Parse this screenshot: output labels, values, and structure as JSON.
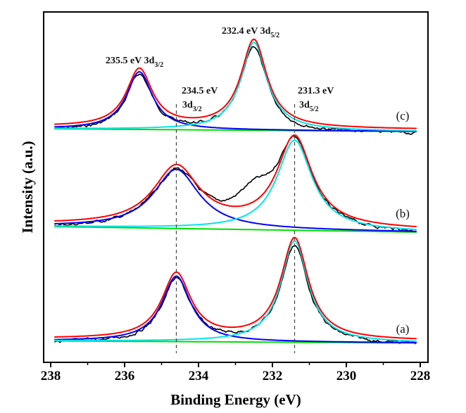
{
  "chart_data": {
    "type": "line",
    "title": "",
    "xlabel": "Binding Energy (eV)",
    "ylabel": "Intensity (a.u.)",
    "xlim": [
      238,
      228
    ],
    "x_reversed": true,
    "xticks": [
      238,
      236,
      234,
      232,
      230,
      228
    ],
    "xtick_labels": [
      "238",
      "236",
      "234",
      "232",
      "230",
      "228"
    ],
    "minor_xticks": [
      237,
      235,
      233,
      231,
      229
    ],
    "yticks_shown": false,
    "grid": false,
    "legend": "none",
    "series_colors": {
      "raw_data": "#000000",
      "envelope_fit": "#ff0000",
      "peak_3d3_2": "#0000ff",
      "peak_3d5_2": "#00e5ee",
      "background": "#00dd00"
    },
    "reference_lines": [
      {
        "x": 234.6,
        "style": "dashed",
        "color": "#444444"
      },
      {
        "x": 231.4,
        "style": "dashed",
        "color": "#444444"
      }
    ],
    "panels": [
      {
        "label": "(c)",
        "offset_order": 3,
        "peaks": [
          {
            "name": "3d3/2",
            "center": 235.6,
            "height": 82,
            "fwhm": 0.85,
            "color": "#0000ff"
          },
          {
            "name": "3d5/2",
            "center": 232.5,
            "height": 125,
            "fwhm": 0.85,
            "color": "#00e5ee"
          }
        ],
        "annotations": [
          {
            "text": "235.5 eV 3d",
            "sub": "3/2",
            "x": 235.5
          },
          {
            "text": "232.4 eV 3d",
            "sub": "5/2",
            "x": 232.4
          }
        ]
      },
      {
        "label": "(b)",
        "offset_order": 2,
        "peaks": [
          {
            "name": "3d3/2",
            "center": 234.6,
            "height": 84,
            "fwhm": 1.5,
            "color": "#0000ff"
          },
          {
            "name": "3d5/2",
            "center": 231.4,
            "height": 128,
            "fwhm": 1.15,
            "color": "#00e5ee"
          }
        ],
        "annotations": [
          {
            "text": "234.5 eV",
            "line2": "3d",
            "sub": "3/2",
            "x": 234.5
          },
          {
            "text": "231.3 eV",
            "line2": "3d",
            "sub": "5/2",
            "x": 231.3
          }
        ]
      },
      {
        "label": "(a)",
        "offset_order": 1,
        "peaks": [
          {
            "name": "3d3/2",
            "center": 234.6,
            "height": 93,
            "fwhm": 0.95,
            "color": "#0000ff"
          },
          {
            "name": "3d5/2",
            "center": 231.4,
            "height": 144,
            "fwhm": 0.9,
            "color": "#00e5ee"
          }
        ],
        "annotations": []
      }
    ]
  },
  "text": {
    "xlabel": "Binding Energy (eV)",
    "ylabel": "Intensity (a.u.)",
    "anno_c1_main": "235.5 eV 3d",
    "anno_c1_sub": "3/2",
    "anno_c2_main": "232.4 eV 3d",
    "anno_c2_sub": "5/2",
    "anno_b1_line1": "234.5 eV",
    "anno_b1_line2": "3d",
    "anno_b1_sub": "3/2",
    "anno_b2_line1": "231.3 eV",
    "anno_b2_line2": "3d",
    "anno_b2_sub": "5/2",
    "panel_c": "(c)",
    "panel_b": "(b)",
    "panel_a": "(a)",
    "ticks": [
      "238",
      "236",
      "234",
      "232",
      "230",
      "228"
    ]
  }
}
